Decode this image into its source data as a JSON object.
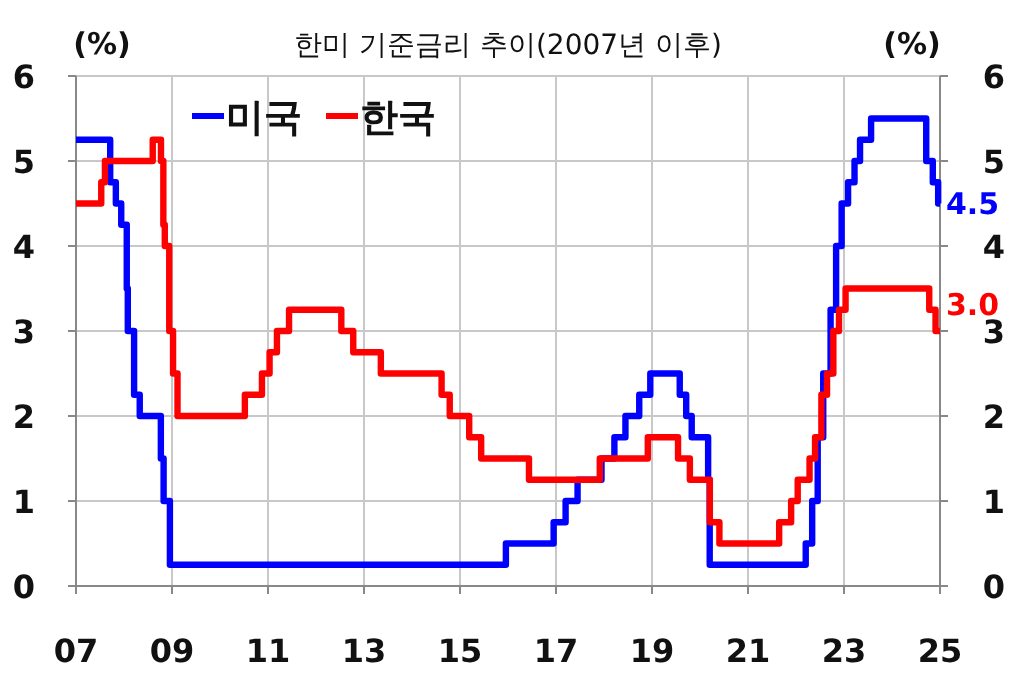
{
  "chart_data": {
    "type": "step",
    "title": "한미 기준금리 추이(2007년 이후)",
    "ylabel": "(%)",
    "y2label": "(%)",
    "xlim": [
      "2007-01-01",
      "2025-01-01"
    ],
    "xticks": [
      {
        "value": "2007",
        "label": "07"
      },
      {
        "value": "2009",
        "label": "09"
      },
      {
        "value": "2011",
        "label": "11"
      },
      {
        "value": "2013",
        "label": "13"
      },
      {
        "value": "2015",
        "label": "15"
      },
      {
        "value": "2017",
        "label": "17"
      },
      {
        "value": "2019",
        "label": "19"
      },
      {
        "value": "2021",
        "label": "21"
      },
      {
        "value": "2023",
        "label": "23"
      },
      {
        "value": "2025",
        "label": "25"
      }
    ],
    "ylim": [
      0,
      6
    ],
    "yticks": [
      0,
      1,
      2,
      3,
      4,
      5,
      6
    ],
    "y2lim": [
      0,
      6
    ],
    "y2ticks": [
      0,
      1,
      2,
      3,
      4,
      5,
      6
    ],
    "grid": true,
    "legend": "top left",
    "series": [
      {
        "name": "미국",
        "color": "#0000ff",
        "x": [
          "2007-01-01",
          "2007-09-18",
          "2007-10-31",
          "2007-12-11",
          "2008-01-22",
          "2008-01-30",
          "2008-03-18",
          "2008-04-30",
          "2008-10-08",
          "2008-10-29",
          "2008-12-16",
          "2015-12-16",
          "2016-12-14",
          "2017-03-15",
          "2017-06-14",
          "2017-12-13",
          "2018-03-21",
          "2018-06-13",
          "2018-09-26",
          "2018-12-19",
          "2019-07-31",
          "2019-09-18",
          "2019-10-30",
          "2020-03-03",
          "2020-03-15",
          "2022-03-16",
          "2022-05-04",
          "2022-06-15",
          "2022-07-27",
          "2022-09-21",
          "2022-11-02",
          "2022-12-14",
          "2023-02-01",
          "2023-03-22",
          "2023-05-03",
          "2023-07-26",
          "2024-09-18",
          "2024-11-07",
          "2024-12-18",
          "2025-01-01"
        ],
        "values": [
          5.25,
          4.75,
          4.5,
          4.25,
          3.5,
          3.0,
          2.25,
          2.0,
          1.5,
          1.0,
          0.25,
          0.5,
          0.75,
          1.0,
          1.25,
          1.5,
          1.75,
          2.0,
          2.25,
          2.5,
          2.25,
          2.0,
          1.75,
          1.25,
          0.25,
          0.5,
          1.0,
          1.75,
          2.5,
          3.25,
          4.0,
          4.5,
          4.75,
          5.0,
          5.25,
          5.5,
          5.0,
          4.75,
          4.5,
          4.5
        ]
      },
      {
        "name": "한국",
        "color": "#ff0000",
        "x": [
          "2007-01-01",
          "2007-07-12",
          "2007-08-09",
          "2008-08-07",
          "2008-10-09",
          "2008-10-27",
          "2008-11-07",
          "2008-12-11",
          "2009-01-09",
          "2009-02-12",
          "2010-07-09",
          "2010-11-16",
          "2011-01-13",
          "2011-03-10",
          "2011-06-10",
          "2012-07-12",
          "2012-10-11",
          "2013-05-09",
          "2014-08-14",
          "2014-10-15",
          "2015-03-12",
          "2015-06-11",
          "2016-06-09",
          "2017-11-30",
          "2018-11-30",
          "2019-07-18",
          "2019-10-16",
          "2020-03-16",
          "2020-05-28",
          "2021-08-26",
          "2021-11-25",
          "2022-01-14",
          "2022-04-14",
          "2022-05-26",
          "2022-07-13",
          "2022-08-25",
          "2022-10-12",
          "2022-11-24",
          "2023-01-13",
          "2024-10-11",
          "2024-11-28",
          "2025-01-01"
        ],
        "values": [
          4.5,
          4.75,
          5.0,
          5.25,
          5.0,
          4.25,
          4.0,
          3.0,
          2.5,
          2.0,
          2.25,
          2.5,
          2.75,
          3.0,
          3.25,
          3.0,
          2.75,
          2.5,
          2.25,
          2.0,
          1.75,
          1.5,
          1.25,
          1.5,
          1.75,
          1.5,
          1.25,
          0.75,
          0.5,
          0.75,
          1.0,
          1.25,
          1.5,
          1.75,
          2.25,
          2.5,
          3.0,
          3.25,
          3.5,
          3.25,
          3.0,
          3.0
        ]
      }
    ],
    "annotations": [
      {
        "text": "4.5",
        "x": "2025-01-01",
        "y": 4.5
      },
      {
        "text": "3.0",
        "x": "2025-01-01",
        "y": 3.0
      }
    ]
  }
}
